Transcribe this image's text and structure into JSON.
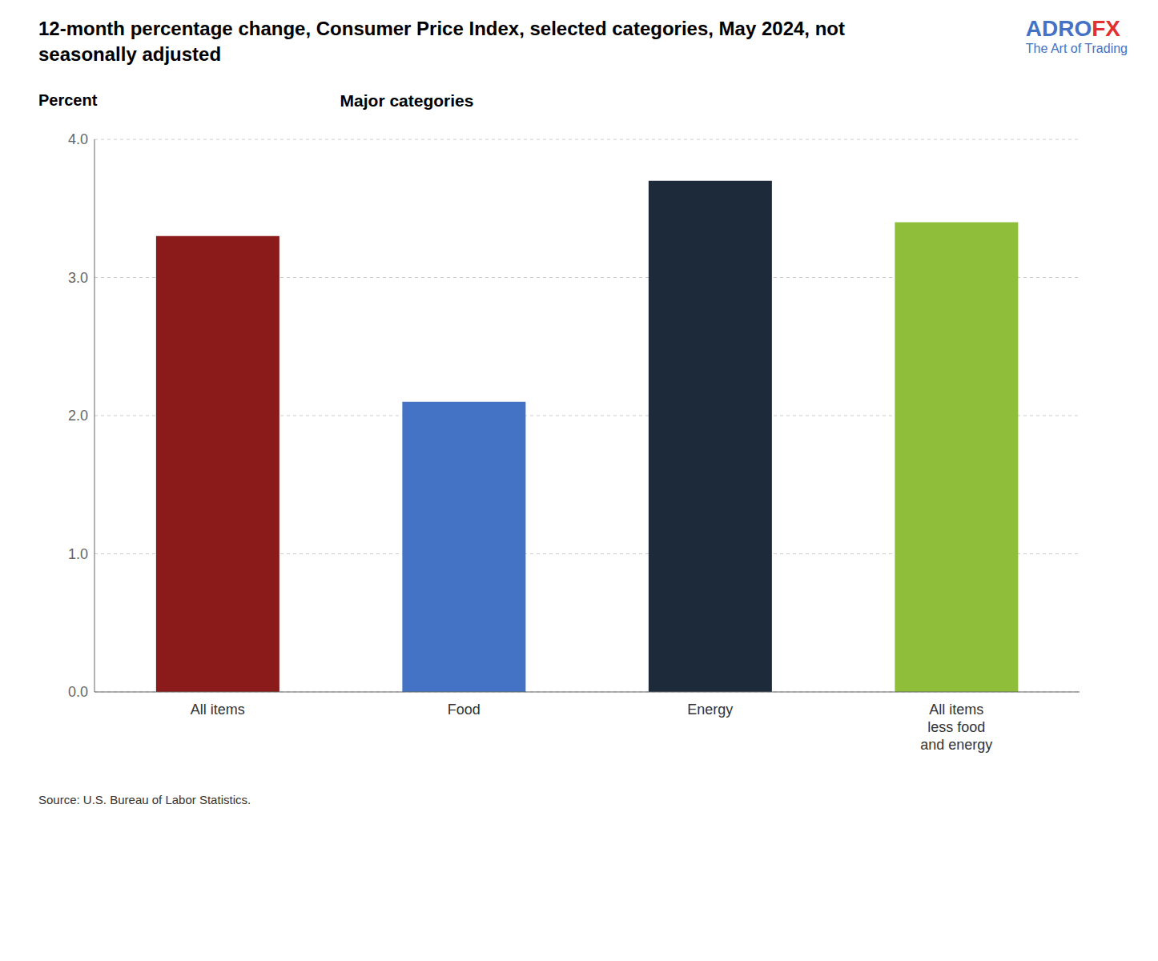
{
  "chart_data": {
    "type": "bar",
    "title": "12-month percentage change, Consumer Price Index, selected categories, May 2024, not\nseasonally adjusted",
    "subtitle": "Major categories",
    "y_label": "Percent",
    "source": "Source: U.S. Bureau of Labor Statistics.",
    "categories": [
      "All items",
      "Food",
      "Energy",
      "All items\nless food\nand energy"
    ],
    "values": [
      3.3,
      2.1,
      3.7,
      3.4
    ],
    "colors": [
      "#8B1A1A",
      "#4472C4",
      "#1C2A3A",
      "#8FBF3A"
    ],
    "ylim": [
      0,
      4.0
    ],
    "yticks": [
      {
        "value": 0,
        "label": "0.0"
      },
      {
        "value": 1,
        "label": "1.0"
      },
      {
        "value": 2,
        "label": "2.0"
      },
      {
        "value": 3,
        "label": "3.0"
      },
      {
        "value": 4,
        "label": "4.0"
      }
    ],
    "grid": true,
    "annotations": [
      {
        "text": "ADRO",
        "color": "#4472C4"
      },
      {
        "text": "FX",
        "color": "#E03030"
      },
      {
        "text": "The Art of Trading",
        "color": "#4472C4"
      }
    ]
  }
}
